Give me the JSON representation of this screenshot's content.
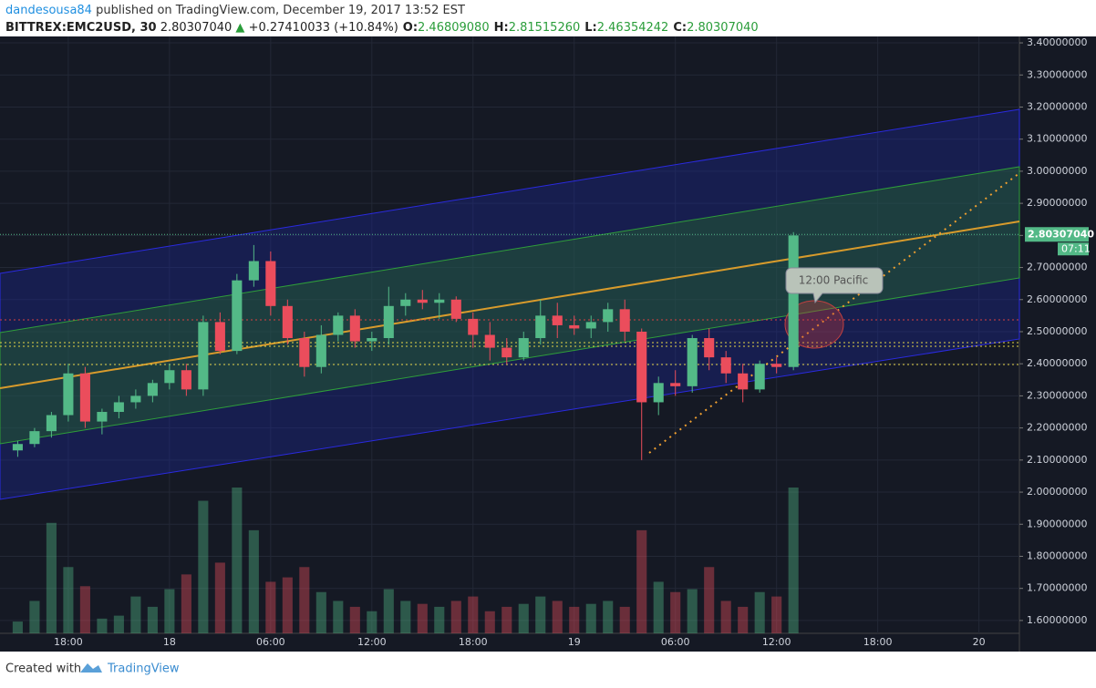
{
  "header": {
    "author": "dandesousa84",
    "published": "published on TradingView.com, December 19, 2017 13:52 EST",
    "symbol": "BITTREX:EMC2USD, 30",
    "price": "2.80307040",
    "change": "+0.27410033 (+10.84%)",
    "ohlc": [
      {
        "key": "O:",
        "value": "2.46809080"
      },
      {
        "key": "H:",
        "value": "2.81515260"
      },
      {
        "key": "L:",
        "value": "2.46354242"
      },
      {
        "key": "C:",
        "value": "2.80307040"
      }
    ]
  },
  "chart_data": {
    "type": "candlestick",
    "x": [
      -3,
      -2,
      -1,
      0,
      1,
      2,
      3,
      4,
      5,
      6,
      7,
      8,
      9,
      10,
      11,
      12,
      13,
      14,
      15,
      16,
      17,
      18,
      19,
      20,
      21,
      22,
      23,
      24,
      25,
      26,
      27,
      28,
      29,
      30,
      31,
      32,
      33,
      34,
      35,
      36,
      37,
      38,
      39,
      40,
      41,
      42,
      43
    ],
    "open": [
      2.13,
      2.15,
      2.19,
      2.24,
      2.37,
      2.22,
      2.25,
      2.28,
      2.3,
      2.34,
      2.38,
      2.32,
      2.53,
      2.44,
      2.66,
      2.72,
      2.58,
      2.48,
      2.39,
      2.49,
      2.55,
      2.47,
      2.48,
      2.58,
      2.6,
      2.59,
      2.6,
      2.54,
      2.49,
      2.45,
      2.42,
      2.48,
      2.55,
      2.52,
      2.51,
      2.53,
      2.57,
      2.5,
      2.28,
      2.34,
      2.33,
      2.48,
      2.42,
      2.37,
      2.32,
      2.4,
      2.39
    ],
    "high": [
      2.16,
      2.2,
      2.25,
      2.4,
      2.39,
      2.26,
      2.3,
      2.32,
      2.35,
      2.4,
      2.4,
      2.55,
      2.56,
      2.68,
      2.77,
      2.75,
      2.6,
      2.5,
      2.52,
      2.56,
      2.57,
      2.5,
      2.64,
      2.62,
      2.63,
      2.62,
      2.61,
      2.56,
      2.53,
      2.48,
      2.5,
      2.6,
      2.59,
      2.55,
      2.55,
      2.59,
      2.6,
      2.51,
      2.36,
      2.38,
      2.49,
      2.51,
      2.44,
      2.4,
      2.41,
      2.42,
      2.81
    ],
    "low": [
      2.11,
      2.14,
      2.17,
      2.22,
      2.2,
      2.18,
      2.23,
      2.26,
      2.28,
      2.32,
      2.3,
      2.3,
      2.43,
      2.43,
      2.64,
      2.55,
      2.46,
      2.36,
      2.37,
      2.47,
      2.45,
      2.44,
      2.46,
      2.55,
      2.57,
      2.54,
      2.53,
      2.45,
      2.41,
      2.4,
      2.41,
      2.46,
      2.48,
      2.49,
      2.48,
      2.5,
      2.47,
      2.1,
      2.24,
      2.3,
      2.31,
      2.38,
      2.34,
      2.28,
      2.31,
      2.37,
      2.38
    ],
    "close": [
      2.15,
      2.19,
      2.24,
      2.37,
      2.22,
      2.25,
      2.28,
      2.3,
      2.34,
      2.38,
      2.32,
      2.53,
      2.44,
      2.66,
      2.72,
      2.58,
      2.48,
      2.39,
      2.49,
      2.55,
      2.47,
      2.48,
      2.58,
      2.6,
      2.59,
      2.6,
      2.54,
      2.49,
      2.45,
      2.42,
      2.48,
      2.55,
      2.52,
      2.51,
      2.53,
      2.57,
      2.5,
      2.28,
      2.34,
      2.33,
      2.48,
      2.42,
      2.37,
      2.32,
      2.4,
      2.39,
      2.8
    ],
    "volume": [
      8,
      22,
      75,
      45,
      32,
      10,
      12,
      25,
      18,
      30,
      40,
      90,
      48,
      99,
      70,
      35,
      38,
      45,
      28,
      22,
      18,
      15,
      30,
      22,
      20,
      18,
      22,
      25,
      15,
      18,
      20,
      25,
      22,
      18,
      20,
      22,
      18,
      70,
      35,
      28,
      30,
      45,
      22,
      18,
      28,
      25,
      99
    ],
    "ylim": [
      1.56,
      3.42
    ],
    "xlim": [
      -4.05,
      56.4
    ],
    "yticks": [
      {
        "value": 1.6,
        "label": "1.60000000"
      },
      {
        "value": 1.7,
        "label": "1.70000000"
      },
      {
        "value": 1.8,
        "label": "1.80000000"
      },
      {
        "value": 1.9,
        "label": "1.90000000"
      },
      {
        "value": 2.0,
        "label": "2.00000000"
      },
      {
        "value": 2.1,
        "label": "2.10000000"
      },
      {
        "value": 2.2,
        "label": "2.20000000"
      },
      {
        "value": 2.3,
        "label": "2.30000000"
      },
      {
        "value": 2.4,
        "label": "2.40000000"
      },
      {
        "value": 2.5,
        "label": "2.50000000"
      },
      {
        "value": 2.6,
        "label": "2.60000000"
      },
      {
        "value": 2.7,
        "label": "2.70000000"
      },
      {
        "value": 2.8,
        "label": "2.80000000"
      },
      {
        "value": 2.9,
        "label": "2.90000000"
      },
      {
        "value": 3.0,
        "label": "3.00000000"
      },
      {
        "value": 3.1,
        "label": "3.10000000"
      },
      {
        "value": 3.2,
        "label": "3.20000000"
      },
      {
        "value": 3.3,
        "label": "3.30000000"
      },
      {
        "value": 3.4,
        "label": "3.40000000"
      }
    ],
    "xticks": [
      {
        "value": 0,
        "label": "18:00"
      },
      {
        "value": 6,
        "label": "18"
      },
      {
        "value": 12,
        "label": "06:00"
      },
      {
        "value": 18,
        "label": "12:00"
      },
      {
        "value": 24,
        "label": "18:00"
      },
      {
        "value": 30,
        "label": "19"
      },
      {
        "value": 36,
        "label": "06:00"
      },
      {
        "value": 42,
        "label": "12:00"
      },
      {
        "value": 48,
        "label": "18:00"
      },
      {
        "value": 54,
        "label": "20"
      }
    ],
    "last_price": {
      "value": 2.8030704,
      "label": "2.80307040"
    },
    "countdown": "07:11",
    "annotation": "12:00 Pacific",
    "up_color": "#53b987",
    "down_color": "#eb4d5c"
  },
  "footer": {
    "created": "Created with",
    "brand": "TradingView"
  }
}
